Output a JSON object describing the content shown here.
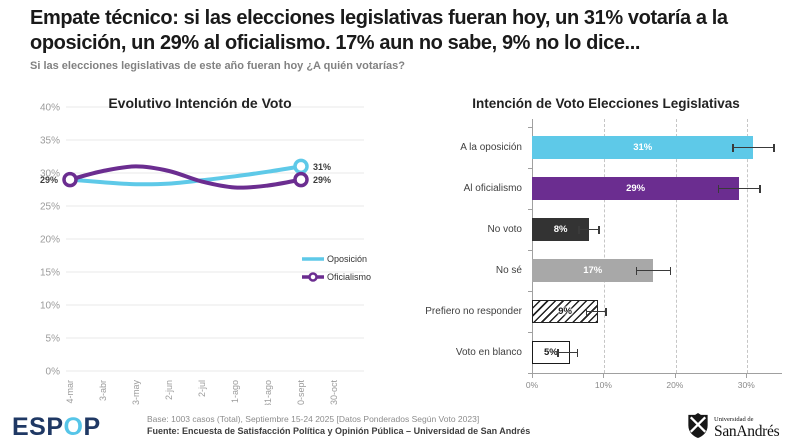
{
  "header": {
    "title": "Empate técnico: si las elecciones legislativas fueran hoy, un 31% votaría a la oposición, un 29% al oficialismo. 17% aun no sabe, 9% no lo dice...",
    "subtitle": "Si las elecciones legislativas de este año fueran hoy ¿A quién votarías?"
  },
  "colors": {
    "opposition_blue": "#5ec9e8",
    "officialism_purple": "#6b2d90",
    "dark_bar": "#333333",
    "gray_bar": "#a8a8a8",
    "espop_navy": "#1f3864",
    "espop_cyan": "#56c5e8"
  },
  "chart_data": [
    {
      "type": "line",
      "title": "Evolutivo Intención de Voto",
      "x": [
        "4-mar",
        "3-abr",
        "3-may",
        "2-jun",
        "2-jul",
        "1-ago",
        "31-ago",
        "30-sept",
        "30-oct"
      ],
      "ylim": [
        0,
        40
      ],
      "ytick_step": 5,
      "grid": true,
      "legend_position": "right",
      "series": [
        {
          "name": "Oposición",
          "color": "#5ec9e8",
          "values": [
            29,
            28.6,
            28.3,
            28.4,
            28.9,
            29.5,
            30.2,
            31,
            null
          ],
          "end_label": "31%",
          "start_label": "",
          "legend_marker": false
        },
        {
          "name": "Oficialismo",
          "color": "#6b2d90",
          "values": [
            29,
            30.3,
            31,
            30.3,
            28.7,
            27.8,
            28.1,
            29,
            null
          ],
          "end_label": "29%",
          "start_label": "29%",
          "legend_marker": true
        }
      ]
    },
    {
      "type": "bar",
      "orientation": "horizontal",
      "title": "Intención de Voto Elecciones Legislativas",
      "categories": [
        "A la oposición",
        "Al oficialismo",
        "No voto",
        "No sé",
        "Prefiero no responder",
        "Voto en blanco"
      ],
      "values": [
        31,
        29,
        8,
        17,
        9,
        5
      ],
      "labels": [
        "31%",
        "29%",
        "8%",
        "17%",
        "9%",
        "5%"
      ],
      "error_margins": [
        3,
        3,
        1.5,
        2.5,
        1.5,
        1.5
      ],
      "xlim": [
        0,
        35
      ],
      "xticks": [
        0,
        10,
        20,
        30
      ],
      "xtick_labels": [
        "0%",
        "10%",
        "20%",
        "30%"
      ],
      "bar_styles": [
        {
          "fill": "#5ec9e8",
          "label_color": "#ffffff"
        },
        {
          "fill": "#6b2d90",
          "label_color": "#ffffff"
        },
        {
          "fill": "#333333",
          "label_color": "#ffffff"
        },
        {
          "fill": "#a8a8a8",
          "label_color": "#ffffff"
        },
        {
          "fill": "hatch",
          "label_color": "#1a1a1a"
        },
        {
          "fill": "#ffffff",
          "border": "#1a1a1a",
          "label_color": "#1a1a1a"
        }
      ]
    }
  ],
  "footer": {
    "logo": {
      "part1": "ESP",
      "part2": "O",
      "part3": "P"
    },
    "base": "Base: 1003 casos (Total), Septiembre 15-24 2025 [Datos Ponderados Según Voto 2023]",
    "fuente": "Fuente: Encuesta de Satisfacción Política y Opinión Pública – Universidad de San Andrés",
    "university": {
      "line1": "Universidad de",
      "line2": "SanAndrés"
    }
  }
}
